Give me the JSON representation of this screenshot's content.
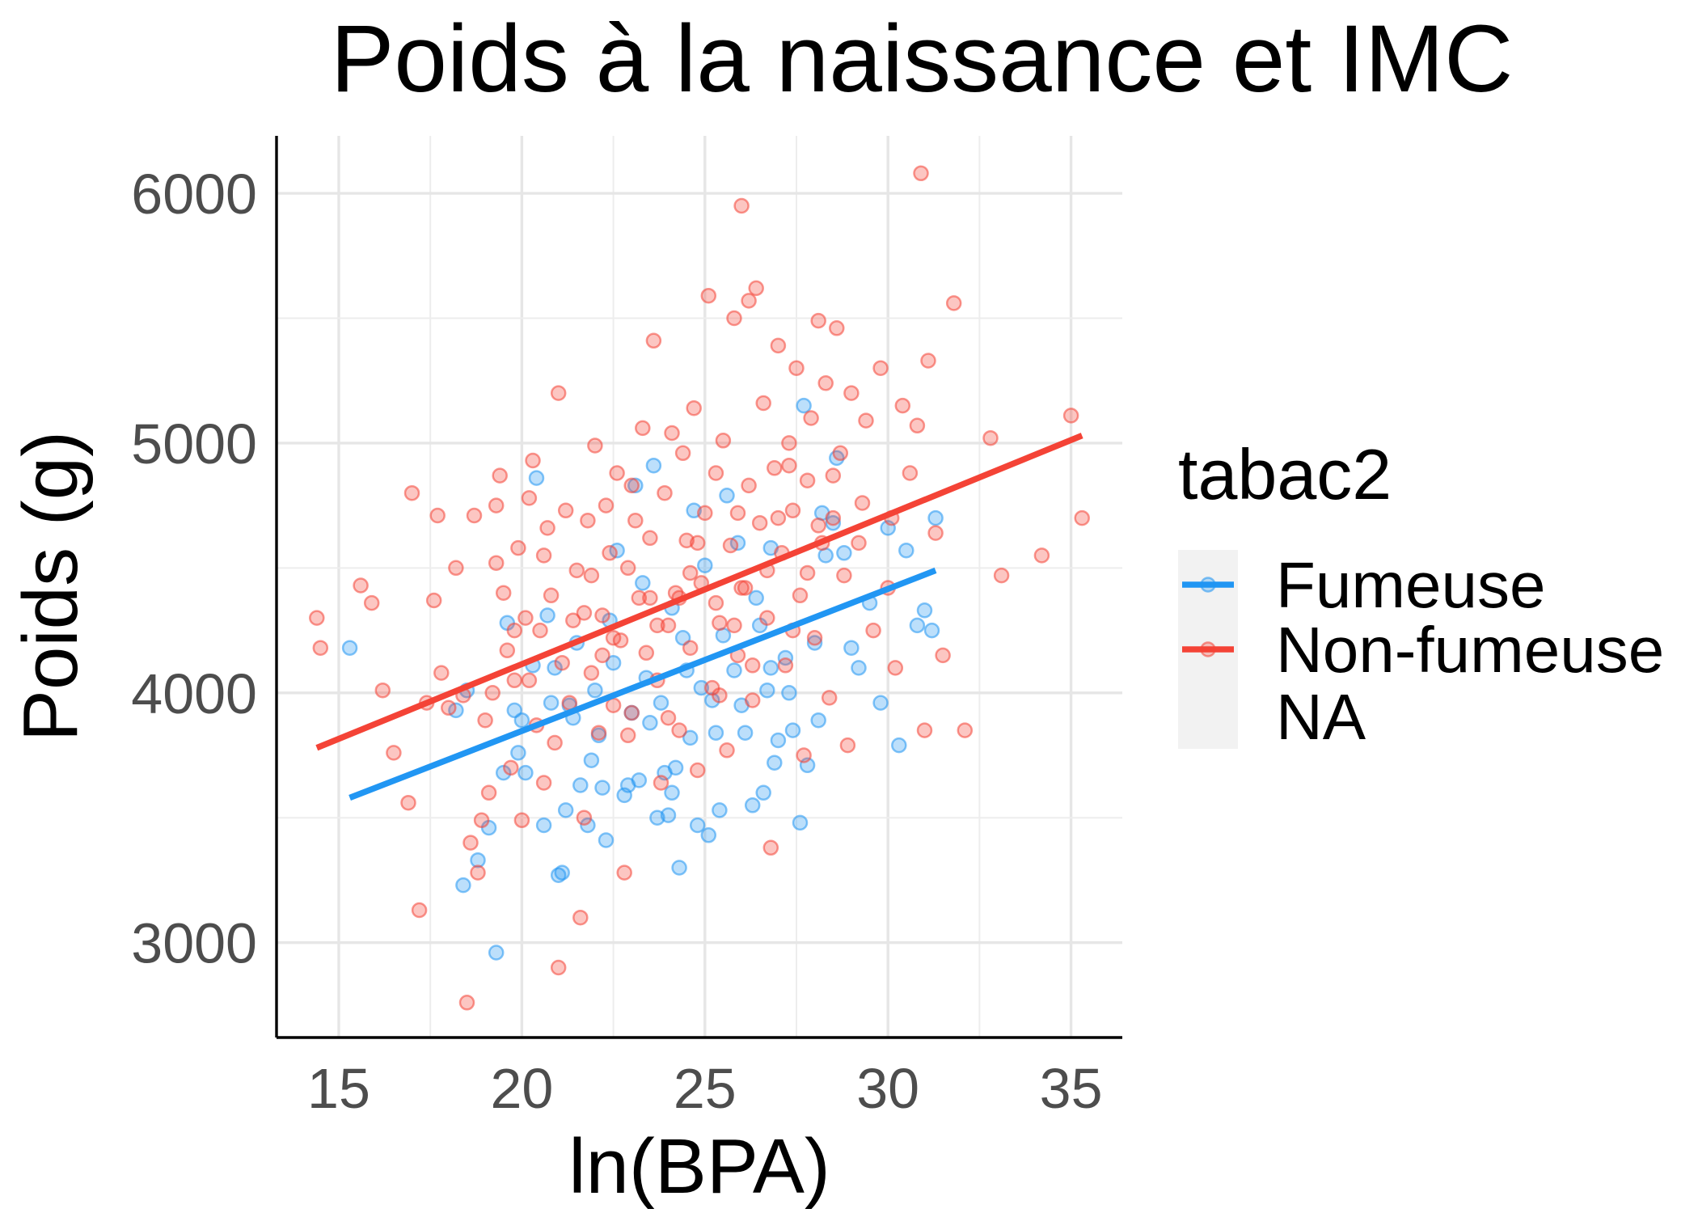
{
  "chart_data": {
    "type": "scatter",
    "title": "Poids à la naissance et IMC",
    "xlabel": "ln(BPA)",
    "ylabel": "Poids (g)",
    "xlim": [
      13.3,
      36.4
    ],
    "ylim": [
      2620,
      6230
    ],
    "x_ticks": [
      "15",
      "20",
      "25",
      "30",
      "35"
    ],
    "y_ticks": [
      "3000",
      "4000",
      "5000",
      "6000"
    ],
    "grid": true,
    "legend": {
      "title": "tabac2",
      "position": "right",
      "entries": [
        "Fumeuse",
        "Non-fumeuse",
        "NA"
      ]
    },
    "series": [
      {
        "name": "Fumeuse",
        "color": "#2196F3",
        "fit_line": [
          [
            15.3,
            3580
          ],
          [
            31.3,
            4490
          ]
        ],
        "points": [
          [
            15.3,
            4180
          ],
          [
            18.2,
            3930
          ],
          [
            18.5,
            4010
          ],
          [
            18.4,
            3230
          ],
          [
            18.8,
            3330
          ],
          [
            19.1,
            3460
          ],
          [
            19.3,
            2960
          ],
          [
            19.5,
            3680
          ],
          [
            19.6,
            4280
          ],
          [
            19.8,
            3930
          ],
          [
            20.0,
            3890
          ],
          [
            20.1,
            3680
          ],
          [
            20.3,
            4110
          ],
          [
            20.4,
            4860
          ],
          [
            20.6,
            3470
          ],
          [
            20.7,
            4310
          ],
          [
            20.8,
            3960
          ],
          [
            20.9,
            4100
          ],
          [
            21.0,
            3270
          ],
          [
            21.1,
            3280
          ],
          [
            21.2,
            3530
          ],
          [
            21.3,
            3950
          ],
          [
            21.4,
            3900
          ],
          [
            21.6,
            3630
          ],
          [
            21.8,
            3470
          ],
          [
            21.9,
            3730
          ],
          [
            22.0,
            4010
          ],
          [
            22.1,
            3830
          ],
          [
            22.2,
            3620
          ],
          [
            22.3,
            3410
          ],
          [
            22.5,
            4120
          ],
          [
            22.6,
            4570
          ],
          [
            22.8,
            3590
          ],
          [
            22.9,
            3630
          ],
          [
            23.0,
            3920
          ],
          [
            23.1,
            4830
          ],
          [
            23.2,
            3650
          ],
          [
            23.3,
            4440
          ],
          [
            23.4,
            4060
          ],
          [
            23.5,
            3880
          ],
          [
            23.6,
            4910
          ],
          [
            23.7,
            3500
          ],
          [
            23.8,
            3960
          ],
          [
            23.9,
            3680
          ],
          [
            24.0,
            3510
          ],
          [
            24.1,
            3600
          ],
          [
            24.2,
            3700
          ],
          [
            24.3,
            3300
          ],
          [
            24.4,
            4220
          ],
          [
            24.5,
            4090
          ],
          [
            24.6,
            3820
          ],
          [
            24.7,
            4730
          ],
          [
            24.8,
            3470
          ],
          [
            24.9,
            4020
          ],
          [
            25.0,
            4510
          ],
          [
            25.1,
            3430
          ],
          [
            25.2,
            3970
          ],
          [
            25.3,
            3840
          ],
          [
            25.4,
            3530
          ],
          [
            25.5,
            4230
          ],
          [
            25.6,
            4790
          ],
          [
            25.8,
            4090
          ],
          [
            25.9,
            4600
          ],
          [
            26.0,
            3950
          ],
          [
            26.1,
            3840
          ],
          [
            26.3,
            3550
          ],
          [
            26.4,
            4380
          ],
          [
            26.5,
            4270
          ],
          [
            26.6,
            3600
          ],
          [
            26.7,
            4010
          ],
          [
            26.8,
            4100
          ],
          [
            26.9,
            3720
          ],
          [
            27.0,
            3810
          ],
          [
            27.2,
            4140
          ],
          [
            27.3,
            4000
          ],
          [
            27.4,
            3850
          ],
          [
            27.6,
            3480
          ],
          [
            27.8,
            3710
          ],
          [
            28.0,
            4200
          ],
          [
            28.1,
            3890
          ],
          [
            28.3,
            4550
          ],
          [
            28.5,
            4680
          ],
          [
            28.6,
            4940
          ],
          [
            28.8,
            4560
          ],
          [
            29.0,
            4180
          ],
          [
            29.2,
            4100
          ],
          [
            29.5,
            4360
          ],
          [
            29.8,
            3960
          ],
          [
            30.0,
            4660
          ],
          [
            30.3,
            3790
          ],
          [
            30.5,
            4570
          ],
          [
            30.8,
            4270
          ],
          [
            31.0,
            4330
          ],
          [
            31.2,
            4250
          ],
          [
            31.3,
            4700
          ],
          [
            26.8,
            4580
          ],
          [
            27.7,
            5150
          ],
          [
            28.2,
            4720
          ],
          [
            22.4,
            4290
          ],
          [
            21.5,
            4200
          ],
          [
            19.9,
            3760
          ],
          [
            24.1,
            4340
          ]
        ]
      },
      {
        "name": "Non-fumeuse",
        "color": "#F44336",
        "fit_line": [
          [
            14.4,
            3780
          ],
          [
            35.3,
            5030
          ]
        ],
        "points": [
          [
            14.4,
            4300
          ],
          [
            14.5,
            4180
          ],
          [
            15.6,
            4430
          ],
          [
            15.9,
            4360
          ],
          [
            16.2,
            4010
          ],
          [
            16.5,
            3760
          ],
          [
            16.9,
            3560
          ],
          [
            17.0,
            4800
          ],
          [
            17.2,
            3130
          ],
          [
            17.4,
            3960
          ],
          [
            17.6,
            4370
          ],
          [
            17.7,
            4710
          ],
          [
            17.8,
            4080
          ],
          [
            18.0,
            3940
          ],
          [
            18.2,
            4500
          ],
          [
            18.4,
            3990
          ],
          [
            18.6,
            3400
          ],
          [
            18.7,
            4710
          ],
          [
            18.8,
            3280
          ],
          [
            18.9,
            3490
          ],
          [
            19.0,
            3890
          ],
          [
            19.1,
            3600
          ],
          [
            19.2,
            4000
          ],
          [
            19.3,
            4520
          ],
          [
            19.4,
            4870
          ],
          [
            19.5,
            4400
          ],
          [
            19.6,
            4170
          ],
          [
            19.7,
            3700
          ],
          [
            19.8,
            4050
          ],
          [
            19.9,
            4580
          ],
          [
            20.0,
            3490
          ],
          [
            20.1,
            4300
          ],
          [
            20.2,
            4780
          ],
          [
            20.3,
            4930
          ],
          [
            20.4,
            3870
          ],
          [
            20.5,
            4250
          ],
          [
            20.6,
            3640
          ],
          [
            20.7,
            4660
          ],
          [
            20.8,
            4390
          ],
          [
            20.9,
            3800
          ],
          [
            21.0,
            5200
          ],
          [
            21.1,
            4120
          ],
          [
            21.2,
            4730
          ],
          [
            21.3,
            3960
          ],
          [
            21.4,
            4290
          ],
          [
            21.5,
            4490
          ],
          [
            21.6,
            3100
          ],
          [
            21.7,
            3500
          ],
          [
            21.8,
            4690
          ],
          [
            21.9,
            4080
          ],
          [
            22.0,
            4990
          ],
          [
            22.1,
            3840
          ],
          [
            22.2,
            4310
          ],
          [
            22.3,
            4750
          ],
          [
            22.4,
            4560
          ],
          [
            22.5,
            3950
          ],
          [
            22.6,
            4880
          ],
          [
            22.7,
            4210
          ],
          [
            22.8,
            3280
          ],
          [
            22.9,
            4500
          ],
          [
            23.0,
            3920
          ],
          [
            23.1,
            4690
          ],
          [
            23.2,
            4380
          ],
          [
            23.3,
            5060
          ],
          [
            23.4,
            4160
          ],
          [
            23.5,
            4620
          ],
          [
            23.6,
            5410
          ],
          [
            23.7,
            4050
          ],
          [
            23.8,
            3640
          ],
          [
            23.9,
            4800
          ],
          [
            24.0,
            4270
          ],
          [
            24.1,
            5040
          ],
          [
            24.2,
            4400
          ],
          [
            24.3,
            3850
          ],
          [
            24.4,
            4960
          ],
          [
            24.5,
            4610
          ],
          [
            24.6,
            4180
          ],
          [
            24.7,
            5140
          ],
          [
            24.8,
            3690
          ],
          [
            24.9,
            4440
          ],
          [
            25.0,
            4720
          ],
          [
            25.1,
            5590
          ],
          [
            25.2,
            4020
          ],
          [
            25.3,
            4880
          ],
          [
            25.4,
            4280
          ],
          [
            25.5,
            5010
          ],
          [
            25.6,
            3770
          ],
          [
            25.7,
            4590
          ],
          [
            25.8,
            5500
          ],
          [
            25.9,
            4150
          ],
          [
            26.0,
            5950
          ],
          [
            26.1,
            4420
          ],
          [
            26.2,
            4830
          ],
          [
            26.3,
            3970
          ],
          [
            26.4,
            5620
          ],
          [
            26.5,
            4680
          ],
          [
            26.6,
            5160
          ],
          [
            26.7,
            4300
          ],
          [
            26.8,
            3380
          ],
          [
            26.9,
            4900
          ],
          [
            27.0,
            5390
          ],
          [
            27.1,
            4560
          ],
          [
            27.2,
            4110
          ],
          [
            27.3,
            5000
          ],
          [
            27.4,
            4730
          ],
          [
            27.5,
            5300
          ],
          [
            27.6,
            4390
          ],
          [
            27.7,
            3750
          ],
          [
            27.8,
            4850
          ],
          [
            27.9,
            5100
          ],
          [
            28.0,
            4220
          ],
          [
            28.1,
            5490
          ],
          [
            28.2,
            4600
          ],
          [
            28.3,
            5240
          ],
          [
            28.4,
            3980
          ],
          [
            28.5,
            4870
          ],
          [
            28.6,
            5460
          ],
          [
            28.8,
            4470
          ],
          [
            28.9,
            3790
          ],
          [
            29.0,
            5200
          ],
          [
            29.2,
            4600
          ],
          [
            29.4,
            5090
          ],
          [
            29.6,
            4250
          ],
          [
            29.8,
            5300
          ],
          [
            30.0,
            4420
          ],
          [
            30.2,
            4100
          ],
          [
            30.4,
            5150
          ],
          [
            30.6,
            4880
          ],
          [
            30.8,
            5070
          ],
          [
            31.0,
            3850
          ],
          [
            31.1,
            5330
          ],
          [
            31.3,
            4640
          ],
          [
            31.5,
            4150
          ],
          [
            31.8,
            5560
          ],
          [
            32.1,
            3850
          ],
          [
            32.8,
            5020
          ],
          [
            33.1,
            4470
          ],
          [
            34.2,
            4550
          ],
          [
            35.0,
            5110
          ],
          [
            35.3,
            4700
          ],
          [
            30.9,
            6080
          ],
          [
            26.2,
            5570
          ],
          [
            18.5,
            2760
          ],
          [
            21.0,
            2900
          ],
          [
            19.3,
            4750
          ],
          [
            20.6,
            4550
          ],
          [
            21.7,
            4320
          ],
          [
            22.2,
            4150
          ],
          [
            23.0,
            4830
          ],
          [
            23.7,
            4270
          ],
          [
            24.6,
            4480
          ],
          [
            25.3,
            4360
          ],
          [
            25.9,
            4720
          ],
          [
            26.7,
            4490
          ],
          [
            27.3,
            4910
          ],
          [
            28.1,
            4670
          ],
          [
            28.7,
            4960
          ],
          [
            29.3,
            4760
          ],
          [
            30.1,
            4700
          ],
          [
            22.9,
            3830
          ],
          [
            24.0,
            3900
          ],
          [
            25.4,
            3990
          ],
          [
            26.3,
            4110
          ],
          [
            27.4,
            4250
          ],
          [
            20.2,
            4050
          ],
          [
            21.9,
            4470
          ],
          [
            23.5,
            4380
          ],
          [
            24.8,
            4600
          ],
          [
            26.0,
            4420
          ],
          [
            27.0,
            4700
          ],
          [
            28.5,
            4700
          ],
          [
            19.8,
            4250
          ],
          [
            22.5,
            4220
          ],
          [
            24.3,
            4380
          ],
          [
            25.8,
            4270
          ],
          [
            27.8,
            4480
          ]
        ]
      }
    ]
  }
}
